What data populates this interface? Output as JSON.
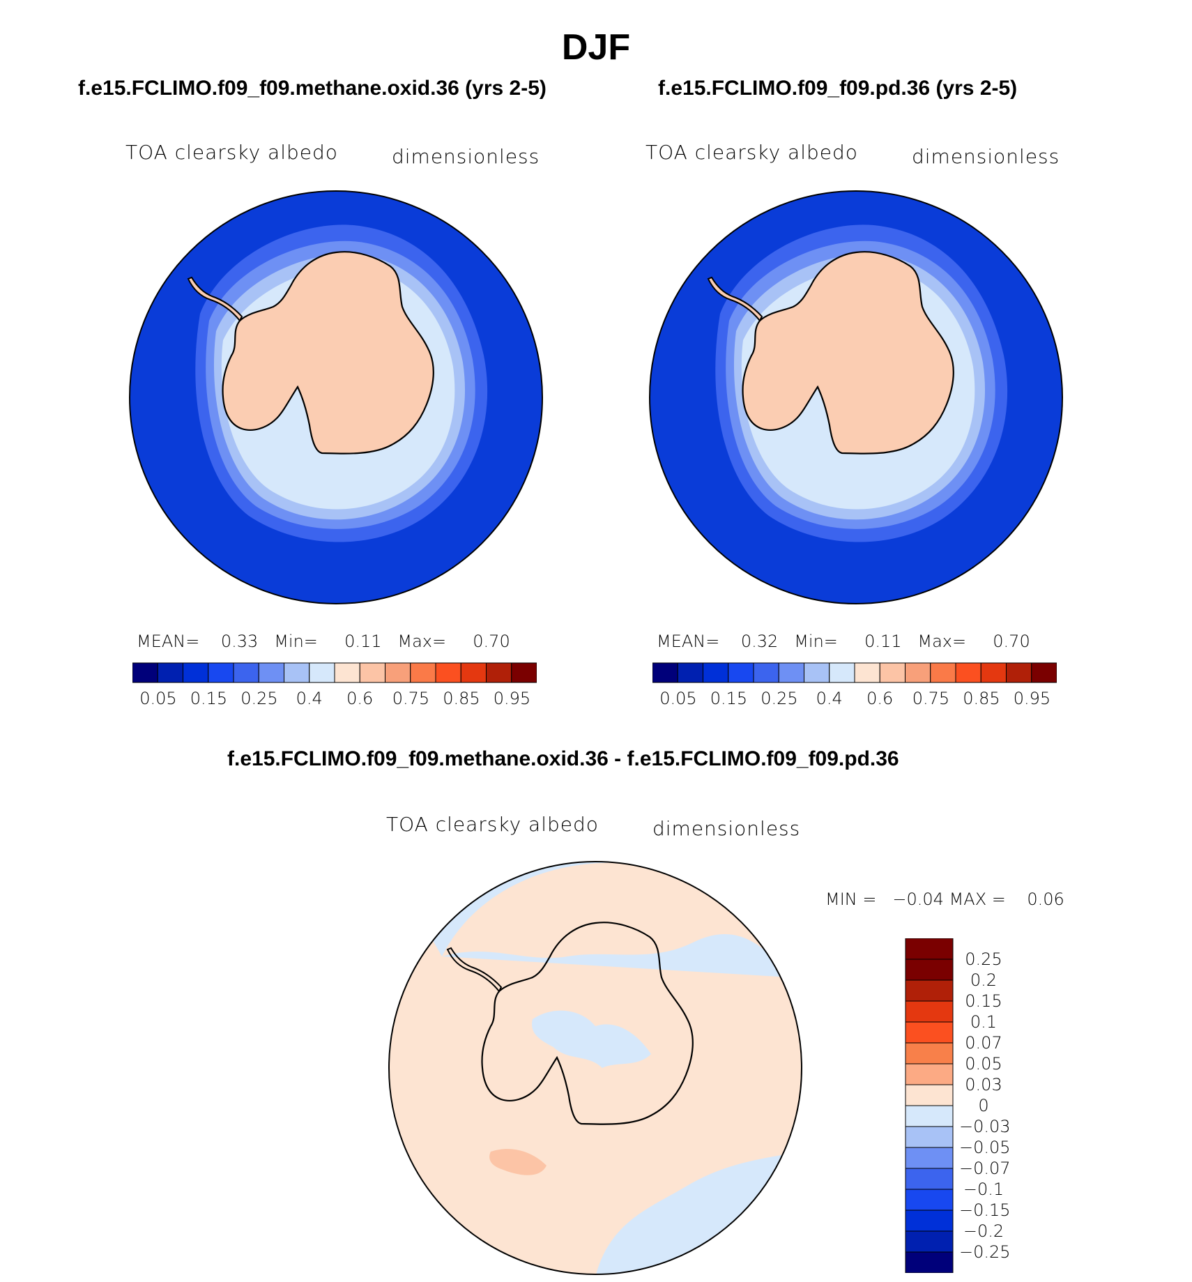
{
  "figure": {
    "title": "DJF"
  },
  "panels": [
    {
      "case_title": "f.e15.FCLIMO.f09_f09.methane.oxid.36 (yrs 2-5)",
      "variable": "TOA clearsky albedo",
      "units": "dimensionless",
      "stats": {
        "mean_label": "MEAN=",
        "mean": "0.33",
        "min_label": "Min=",
        "min": "0.11",
        "max_label": "Max=",
        "max": "0.70"
      }
    },
    {
      "case_title": "f.e15.FCLIMO.f09_f09.pd.36 (yrs 2-5)",
      "variable": "TOA clearsky albedo",
      "units": "dimensionless",
      "stats": {
        "mean_label": "MEAN=",
        "mean": "0.32",
        "min_label": "Min=",
        "min": "0.11",
        "max_label": "Max=",
        "max": "0.70"
      }
    },
    {
      "case_title": "f.e15.FCLIMO.f09_f09.methane.oxid.36 - f.e15.FCLIMO.f09_f09.pd.36",
      "variable": "TOA clearsky albedo",
      "units": "dimensionless",
      "stats": {
        "min_label": "MIN =",
        "min": "−0.04",
        "max_label": "MAX =",
        "max": "0.06"
      }
    }
  ],
  "colorbar_abs": {
    "colors": [
      "#00007a",
      "#0020b0",
      "#0030d8",
      "#1848f0",
      "#3c64ee",
      "#6e90f4",
      "#a8c2f6",
      "#d6e8fb",
      "#fde4d2",
      "#fcc4a6",
      "#f8a07a",
      "#fa7a48",
      "#fb5020",
      "#e43810",
      "#b02008",
      "#7a0000"
    ],
    "tick_labels": [
      "0.05",
      "0.15",
      "0.25",
      "0.4",
      "0.6",
      "0.75",
      "0.85",
      "0.95"
    ]
  },
  "colorbar_diff": {
    "colors": [
      "#7a0000",
      "#b02008",
      "#e43810",
      "#fb5020",
      "#f8804a",
      "#fcaa84",
      "#fde4d2",
      "#d6e8fb",
      "#a8c2f6",
      "#6e90f4",
      "#3c64ee",
      "#1848f0",
      "#0030d8",
      "#0020b0",
      "#00007a"
    ],
    "tick_labels": [
      "0.25",
      "0.2",
      "0.15",
      "0.1",
      "0.07",
      "0.05",
      "0.03",
      "0",
      "−0.03",
      "−0.05",
      "−0.07",
      "−0.1",
      "−0.15",
      "−0.2",
      "−0.25"
    ]
  },
  "map_colors": {
    "ocean_low": "#0a3cd8",
    "ice_1": "#3c64ee",
    "ice_2": "#6e90f4",
    "ice_3": "#a8c2f6",
    "ice_4": "#d6e8fb",
    "ice_5": "#fde4d2",
    "land": "#fbcdb2",
    "diff_pos": "#fde4d2",
    "diff_neg": "#d6e8fb",
    "diff_pos2": "#fcc4a6"
  }
}
